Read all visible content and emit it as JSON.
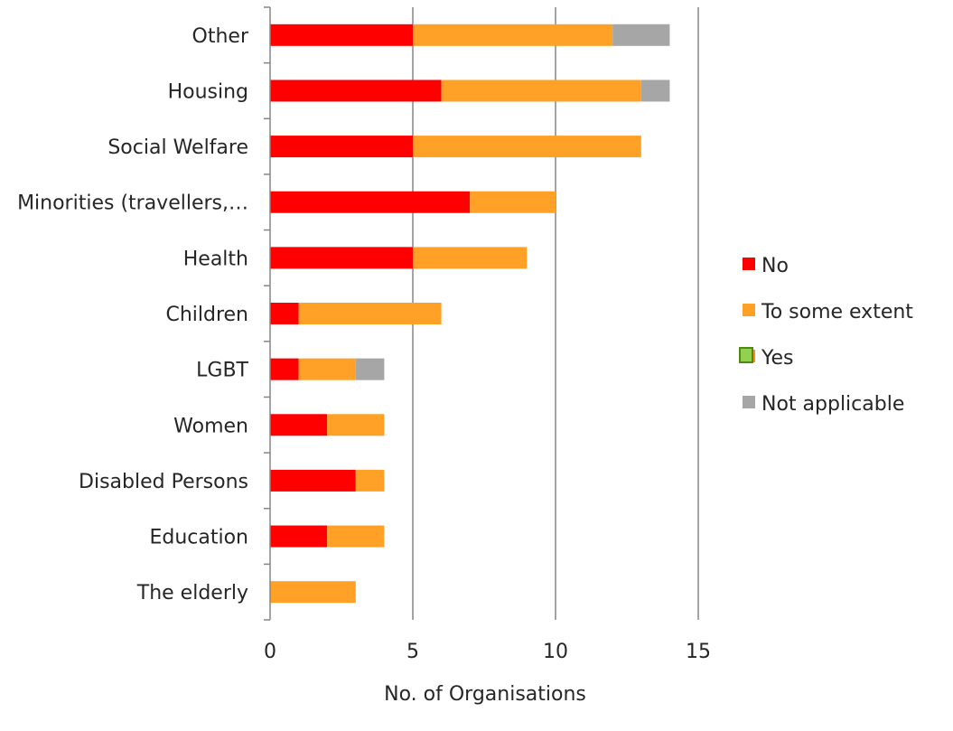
{
  "chart_data": {
    "type": "bar",
    "orientation": "horizontal",
    "stacked": true,
    "categories": [
      "Other",
      "Housing",
      "Social Welfare",
      "Minorities (travellers,…",
      "Health",
      "Children",
      "LGBT",
      "Women",
      "Disabled Persons",
      "Education",
      "The elderly"
    ],
    "series": [
      {
        "name": "No",
        "color": "#ff0000",
        "values": [
          5,
          6,
          5,
          7,
          5,
          1,
          1,
          2,
          3,
          2,
          0
        ]
      },
      {
        "name": "To some extent",
        "color": "#ffa126",
        "values": [
          7,
          7,
          8,
          3,
          4,
          5,
          2,
          2,
          1,
          2,
          3
        ]
      },
      {
        "name": "Yes",
        "color": "#92d050",
        "values": [
          0,
          0,
          0,
          0,
          0,
          0,
          0,
          0,
          0,
          0,
          0
        ]
      },
      {
        "name": "Not applicable",
        "color": "#a6a6a6",
        "values": [
          2,
          1,
          0,
          0,
          0,
          0,
          1,
          0,
          0,
          0,
          0
        ]
      }
    ],
    "xlabel": "No. of Organisations",
    "ylabel": "",
    "xlim": [
      0,
      15
    ],
    "xticks": [
      0,
      5,
      10,
      15
    ],
    "grid": "vertical",
    "legend": "right"
  }
}
